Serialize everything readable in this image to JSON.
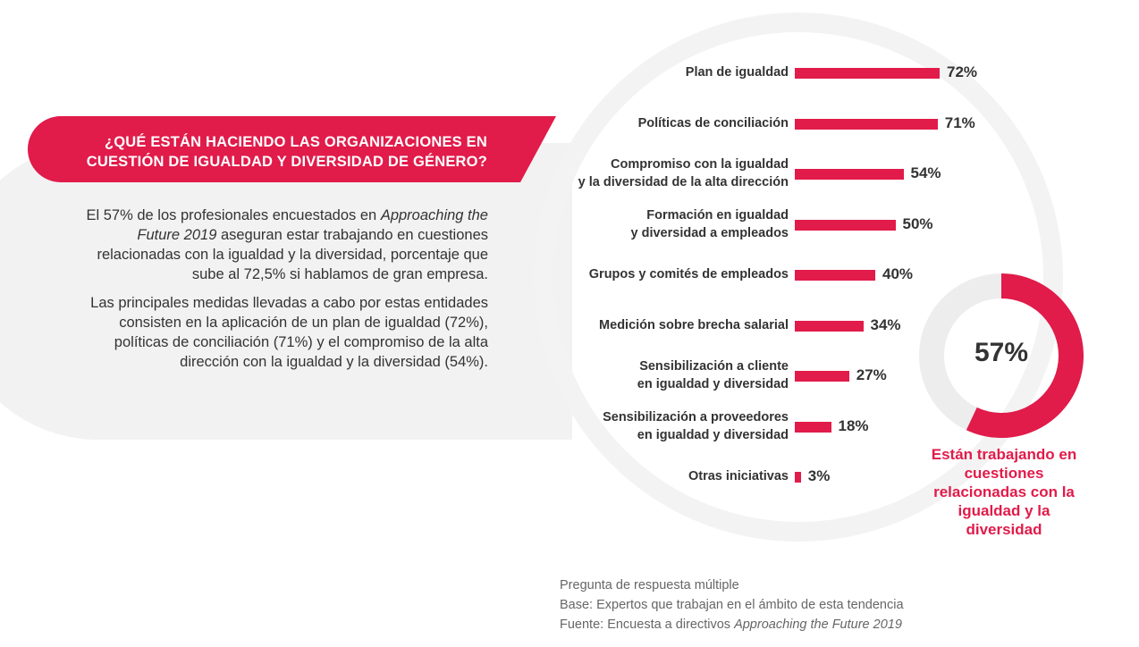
{
  "header": {
    "line1": "¿QUÉ ESTÁN HACIENDO LAS ORGANIZACIONES EN",
    "line2": "CUESTIÓN DE IGUALDAD Y DIVERSIDAD DE GÉNERO?"
  },
  "body": {
    "p1_a": "El 57% de los profesionales encuestados en",
    "p1_b_italic": "Approaching the Future 2019",
    "p1_c": " aseguran estar trabajando en cuestiones relacionadas con la igualdad y la diversidad, porcentaje que sube al 72,5% si hablamos de gran empresa.",
    "p2": "Las principales medidas llevadas a cabo por estas entidades consisten en la aplicación de un plan de igualdad (72%), políticas de conciliación (71%) y el compromiso de la alta dirección con la igualdad y la diversidad (54%)."
  },
  "chart_data": [
    {
      "type": "bar",
      "orientation": "horizontal",
      "categories": [
        [
          "Plan de igualdad"
        ],
        [
          "Políticas de conciliación"
        ],
        [
          "Compromiso con la igualdad",
          "y la diversidad de la alta dirección"
        ],
        [
          "Formación en igualdad",
          "y diversidad a empleados"
        ],
        [
          "Grupos y comités de empleados"
        ],
        [
          "Medición sobre brecha salarial"
        ],
        [
          "Sensibilización a cliente",
          "en igualdad y diversidad"
        ],
        [
          "Sensibilización a proveedores",
          "en igualdad y diversidad"
        ],
        [
          "Otras iniciativas"
        ]
      ],
      "values": [
        72,
        71,
        54,
        50,
        40,
        34,
        27,
        18,
        3
      ],
      "value_labels": [
        "72%",
        "71%",
        "54%",
        "50%",
        "40%",
        "34%",
        "27%",
        "18%",
        "3%"
      ],
      "unit": "%",
      "color": "#e11b4a"
    },
    {
      "type": "pie",
      "style": "donut",
      "values": [
        57,
        43
      ],
      "colors": [
        "#e11b4a",
        "#ededed"
      ],
      "center_label": "57%",
      "caption": "Están trabajando en cuestiones relacionadas con la igualdad y la diversidad"
    }
  ],
  "footnote": {
    "line1": "Pregunta de respuesta múltiple",
    "line2": "Base: Expertos que trabajan en el ámbito de esta tendencia",
    "line3_a": "Fuente: Encuesta a directivos ",
    "line3_b_italic": "Approaching the Future 2019"
  },
  "colors": {
    "accent": "#e11b4a",
    "panel": "#f2f2f2",
    "ring": "#f3f3f3",
    "text": "#333333",
    "muted": "#666666"
  }
}
